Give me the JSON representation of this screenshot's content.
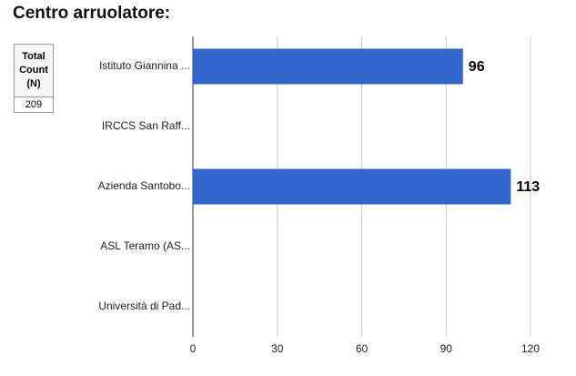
{
  "chart_data": {
    "type": "bar",
    "orientation": "horizontal",
    "title": "Centro arruolatore:",
    "categories": [
      "Istituto Giannina ...",
      "IRCCS San Raff...",
      "Azienda Santobo...",
      "ASL Teramo (AS...",
      "Università di Pad..."
    ],
    "values": [
      96,
      null,
      113,
      null,
      null
    ],
    "color": "#3366cc",
    "xlim": [
      0,
      120
    ],
    "xticks": [
      0,
      30,
      60,
      90,
      120
    ],
    "grid": true
  },
  "summary": {
    "header": "Total Count (N)",
    "value": 209
  }
}
